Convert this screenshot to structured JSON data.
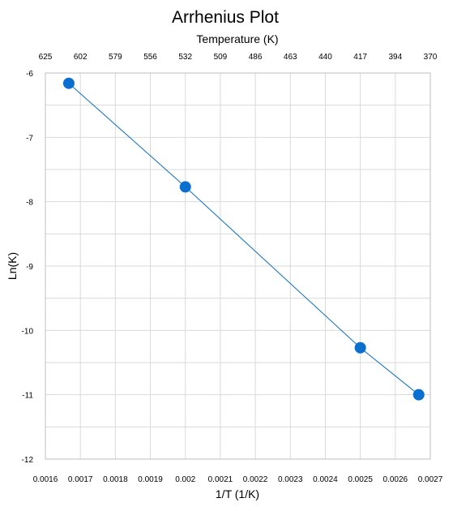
{
  "chart_data": {
    "type": "scatter",
    "title": "Arrhenius Plot",
    "xlabel": "1/T (1/K)",
    "ylabel": "Ln(K)",
    "x2label": "Temperature (K)",
    "xlim": [
      0.0016,
      0.0027
    ],
    "ylim": [
      -12,
      -6
    ],
    "x_ticks": [
      "0.0016",
      "0.0017",
      "0.0018",
      "0.0019",
      "0.002",
      "0.0021",
      "0.0022",
      "0.0023",
      "0.0024",
      "0.0025",
      "0.0026",
      "0.0027"
    ],
    "y_ticks": [
      "-6",
      "-7",
      "-8",
      "-9",
      "-10",
      "-11",
      "-12"
    ],
    "x2_ticks": [
      "625",
      "602",
      "579",
      "556",
      "532",
      "509",
      "486",
      "463",
      "440",
      "417",
      "394",
      "370"
    ],
    "grid": true,
    "marker_color": "#0b6fcf",
    "line_color": "#0b6fcf",
    "points": [
      {
        "x": 0.001667,
        "y": -6.16
      },
      {
        "x": 0.002,
        "y": -7.77
      },
      {
        "x": 0.0025,
        "y": -10.27
      },
      {
        "x": 0.002667,
        "y": -11.0
      }
    ],
    "trendline": true
  }
}
